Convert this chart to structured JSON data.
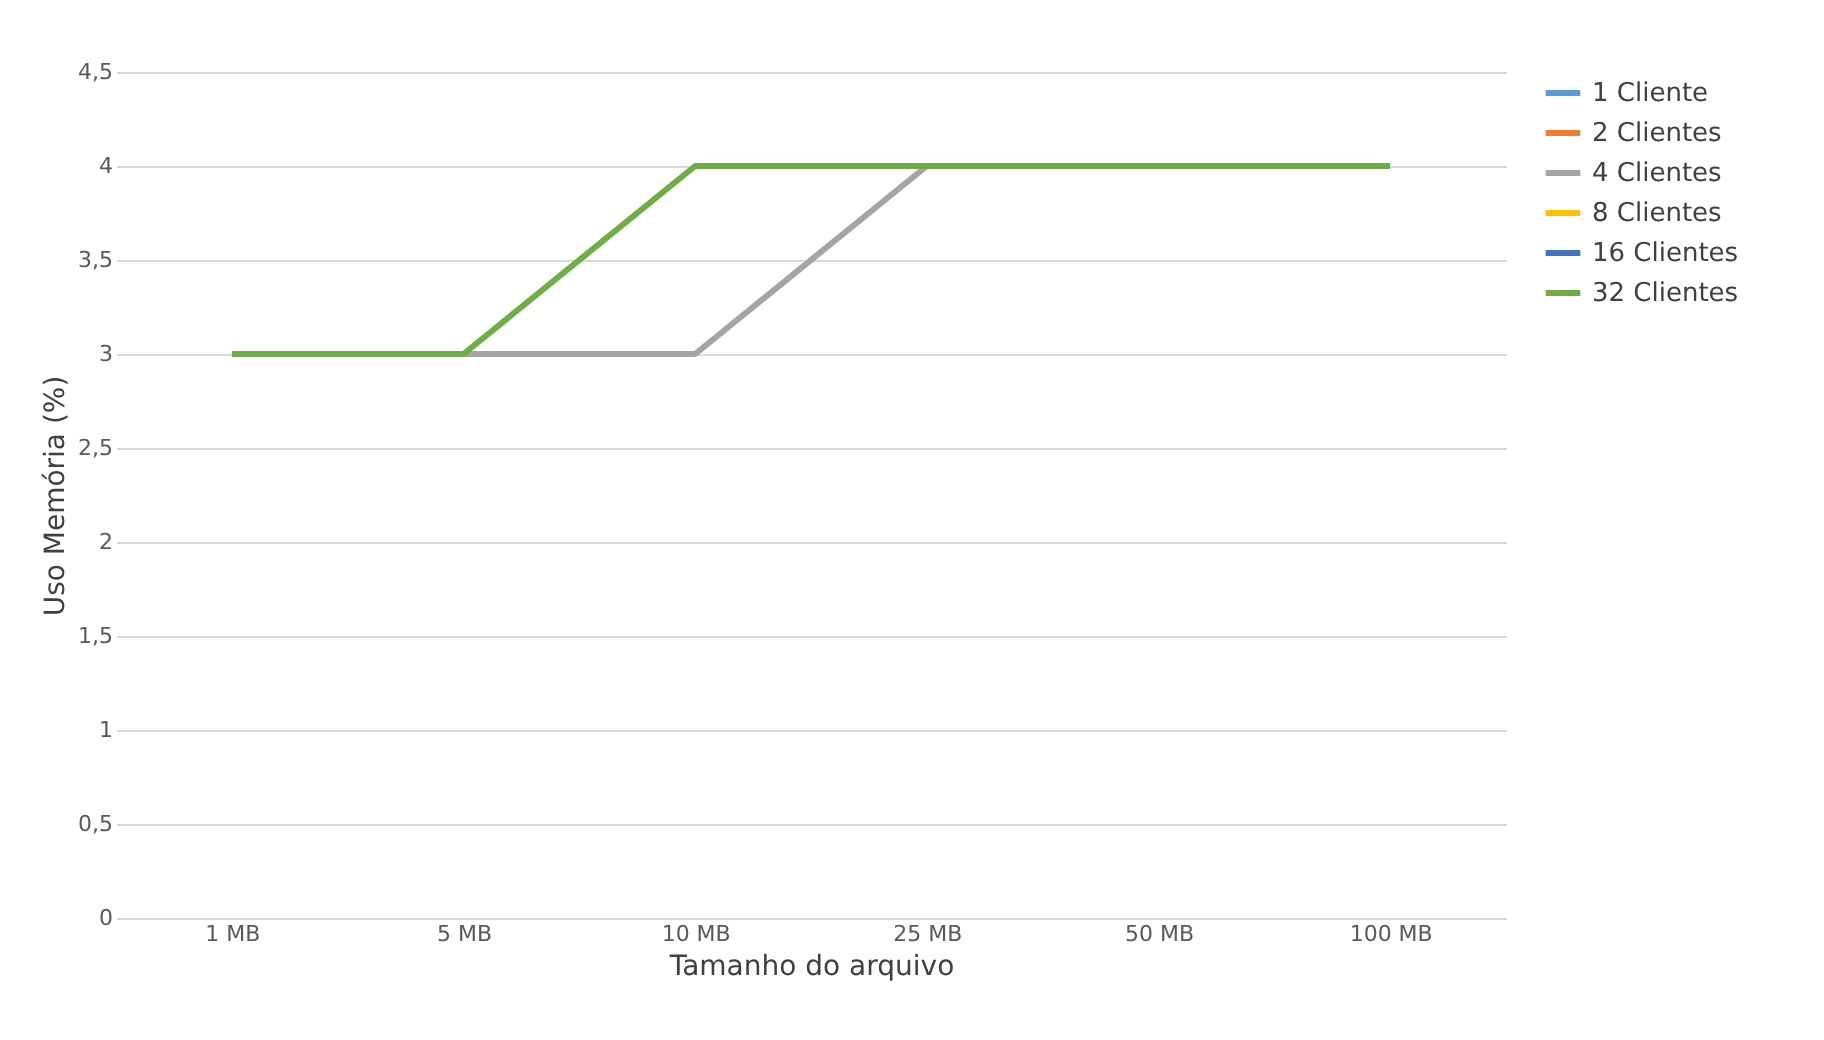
{
  "chart_data": {
    "type": "line",
    "xlabel": "Tamanho do arquivo",
    "ylabel": "Uso Memória (%)",
    "categories": [
      "1 MB",
      "5 MB",
      "10 MB",
      "25 MB",
      "50 MB",
      "100 MB"
    ],
    "series": [
      {
        "name": "1 Cliente",
        "color": "#5b9bd5",
        "values": [
          null,
          null,
          null,
          null,
          null,
          null
        ]
      },
      {
        "name": "2 Clientes",
        "color": "#ed7d31",
        "values": [
          null,
          null,
          null,
          null,
          null,
          null
        ]
      },
      {
        "name": "4 Clientes",
        "color": "#a5a5a5",
        "values": [
          null,
          3,
          3,
          4,
          null,
          null
        ]
      },
      {
        "name": "8 Clientes",
        "color": "#ffc000",
        "values": [
          null,
          null,
          null,
          null,
          null,
          null
        ]
      },
      {
        "name": "16 Clientes",
        "color": "#4472c4",
        "values": [
          null,
          null,
          null,
          null,
          null,
          null
        ]
      },
      {
        "name": "32 Clientes",
        "color": "#70ad47",
        "values": [
          3,
          3,
          4,
          4,
          4,
          4
        ]
      }
    ],
    "ylim": [
      0,
      4.5
    ],
    "yticks": [
      0,
      {
        "value": 0.5,
        "label": "0,5"
      },
      1,
      {
        "value": 1.5,
        "label": "1,5"
      },
      2,
      {
        "value": 2.5,
        "label": "2,5"
      },
      3,
      {
        "value": 3.5,
        "label": "3,5"
      },
      4,
      {
        "value": 4.5,
        "label": "4,5"
      }
    ],
    "grid": "y",
    "legend": "right",
    "marker": "none",
    "line_style": "solid"
  }
}
